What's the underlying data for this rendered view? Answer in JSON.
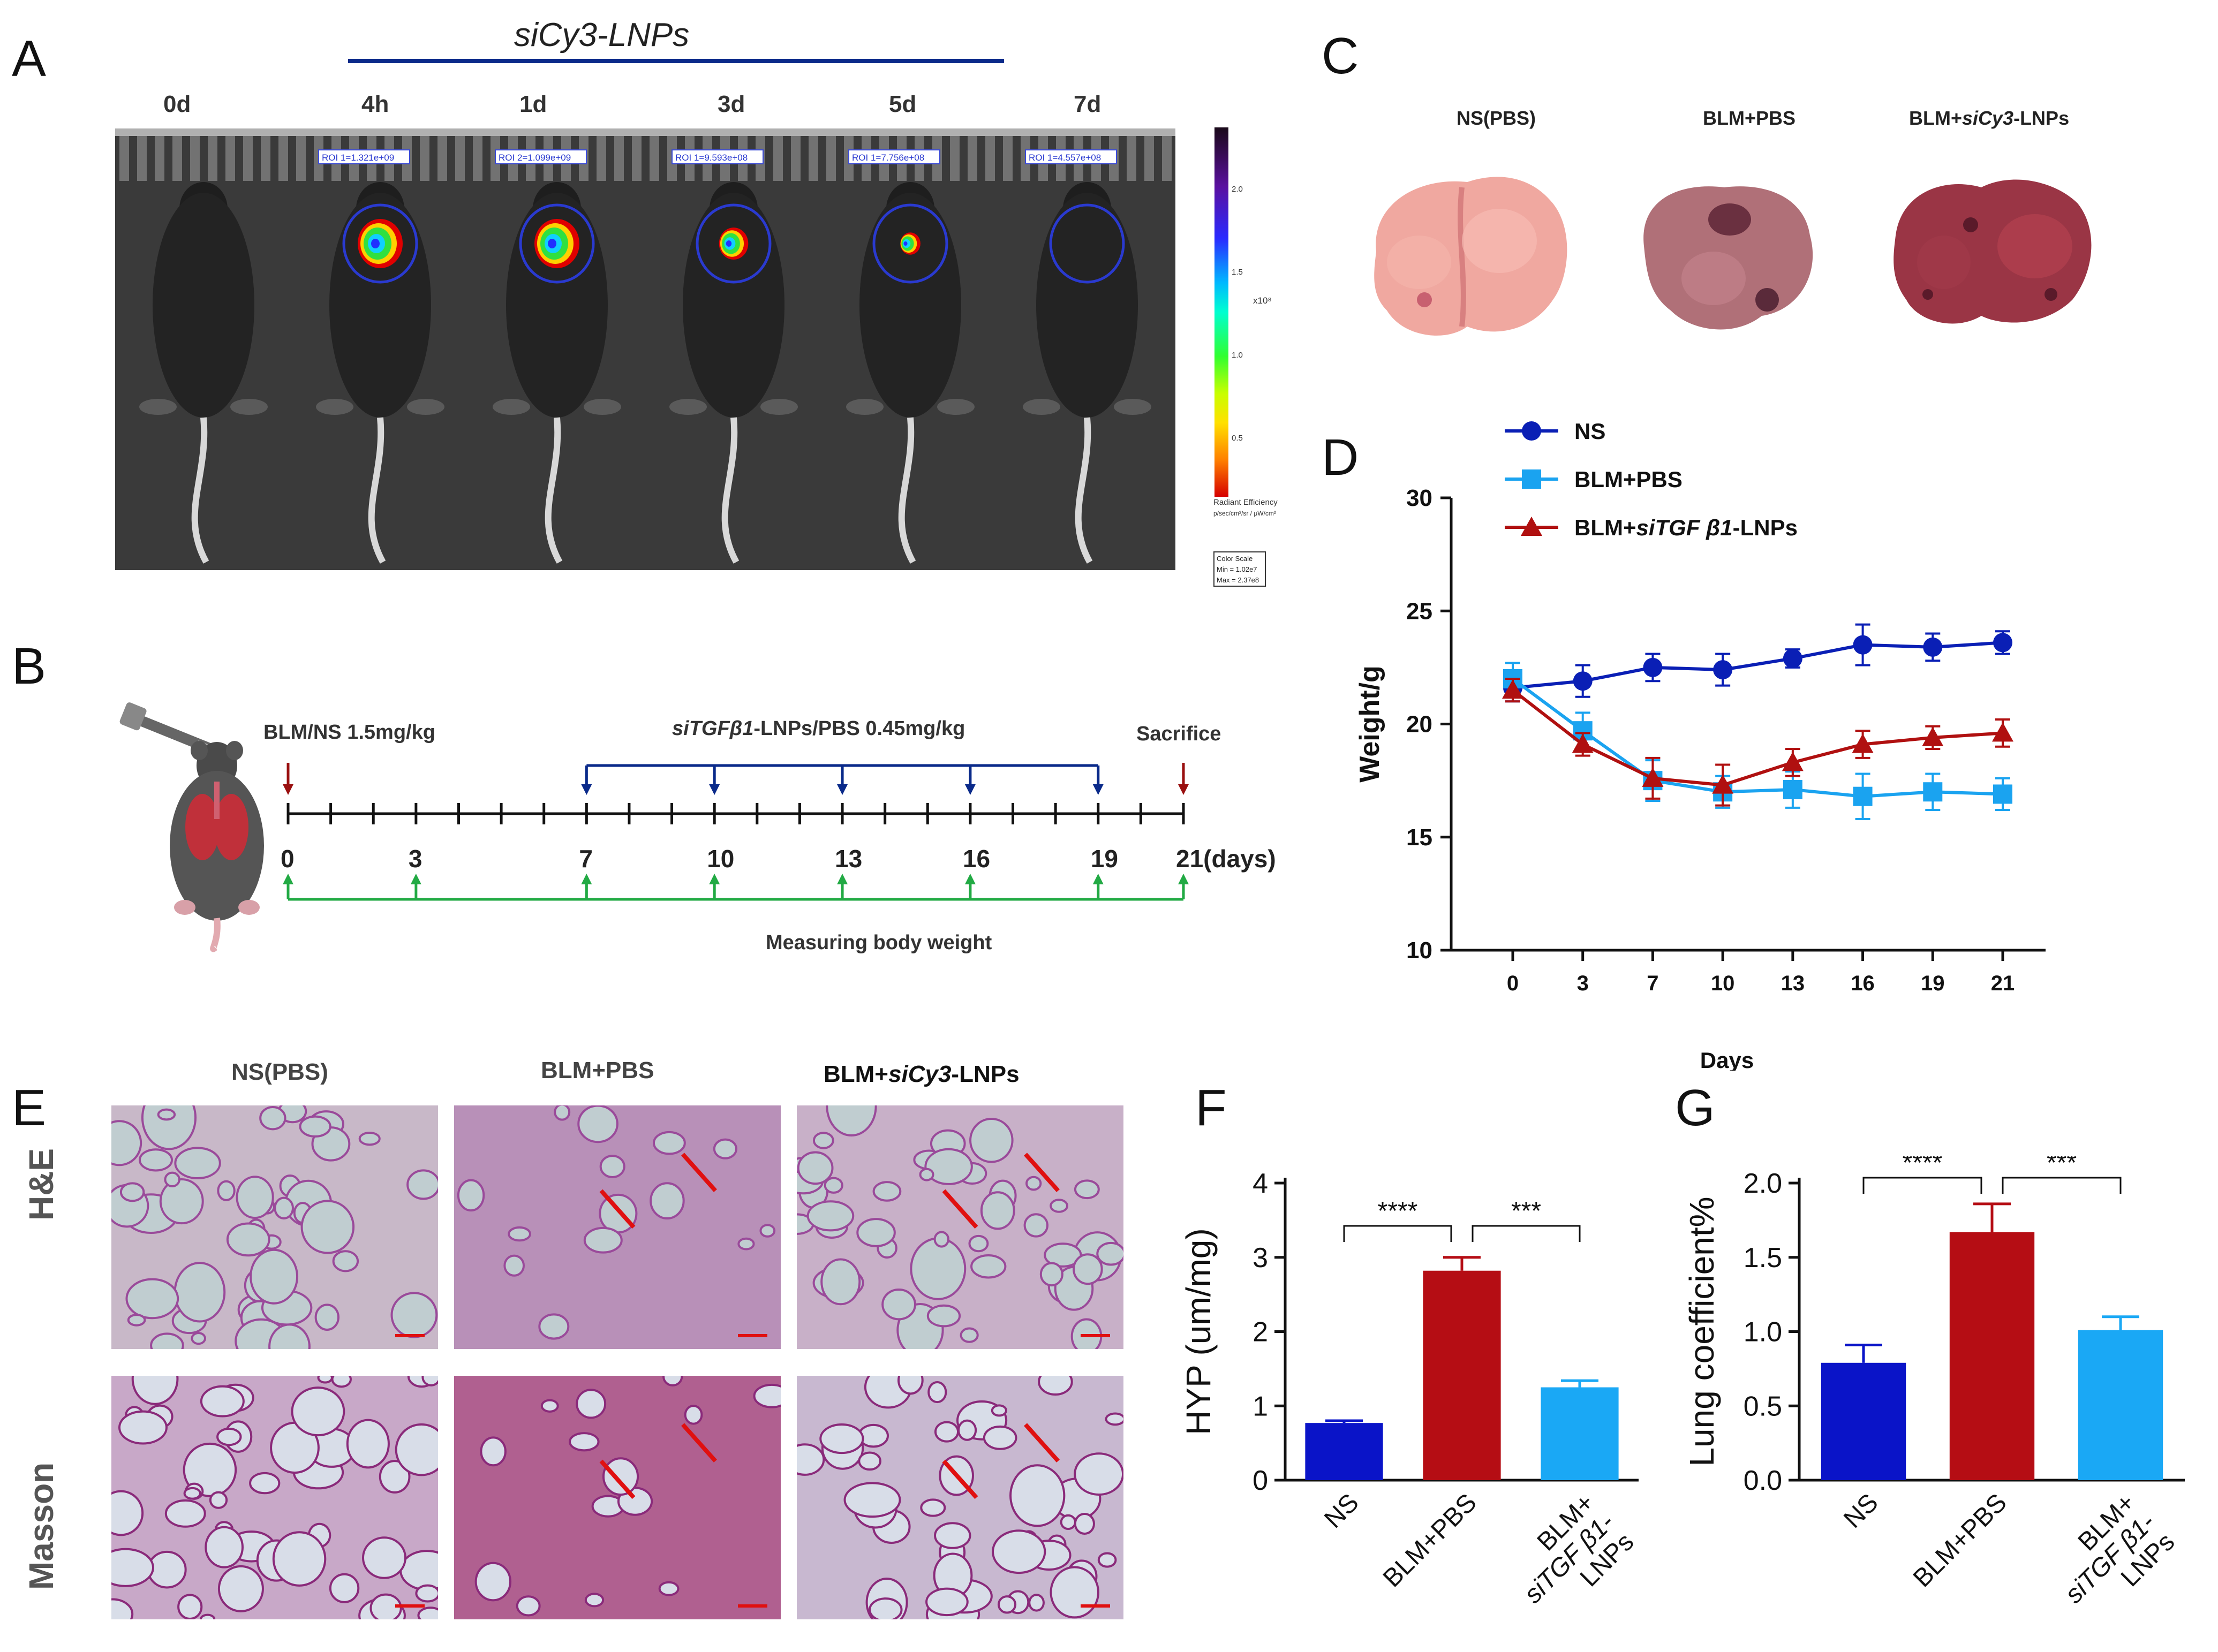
{
  "panel_labels": {
    "A": "A",
    "B": "B",
    "C": "C",
    "D": "D",
    "E": "E",
    "F": "F",
    "G": "G"
  },
  "panelA": {
    "header": "siCy3-LNPs",
    "timepoints": [
      "0d",
      "4h",
      "1d",
      "3d",
      "5d",
      "7d"
    ],
    "roi_labels": [
      "ROI 1=1.321e+09",
      "ROI 2=1.099e+09",
      "ROI 1=9.593e+08",
      "ROI 1=7.756e+08",
      "ROI 1=4.557e+08"
    ],
    "scale": {
      "ticks": [
        "2.0",
        "1.5",
        "1.0",
        "0.5"
      ],
      "multiplier": "x10⁸",
      "title": "Radiant Efficiency",
      "units": "p/sec/cm²/sr / μW/cm²",
      "color_scale_title": "Color Scale",
      "min": "Min = 1.02e7",
      "max": "Max = 2.37e8",
      "color_top": "#1a0a1a",
      "color_bottom": "#d60000"
    }
  },
  "panelB": {
    "dose_left": "BLM/NS 1.5mg/kg",
    "dose_mid_italic": "siTGFβ1",
    "dose_mid_rest": "-LNPs/PBS 0.45mg/kg",
    "sacrifice": "Sacrifice",
    "ticks": [
      "0",
      "3",
      "7",
      "10",
      "13",
      "16",
      "19",
      "21(days)"
    ],
    "measure": "Measuring body weight"
  },
  "panelC": {
    "labels": [
      "NS(PBS)",
      "BLM+PBS",
      "BLM+",
      "siCy3",
      "-LNPs"
    ]
  },
  "panelE": {
    "col_headers": [
      "NS(PBS)",
      "BLM+PBS",
      "BLM+",
      "siCy3",
      "-LNPs"
    ],
    "row_labels": [
      "H&E",
      "Masson"
    ]
  },
  "chart_data": [
    {
      "id": "D",
      "type": "line",
      "xlabel": "Days",
      "ylabel": "Weight/g",
      "categories": [
        "0",
        "3",
        "7",
        "10",
        "13",
        "16",
        "19",
        "21"
      ],
      "ylim": [
        10,
        30
      ],
      "yticks": [
        "10",
        "15",
        "20",
        "25",
        "30"
      ],
      "legend_position": "top-left",
      "series": [
        {
          "name": "NS",
          "color": "#0a1fb5",
          "marker": "circle",
          "values": [
            21.6,
            21.9,
            22.5,
            22.4,
            22.9,
            23.5,
            23.4,
            23.6
          ],
          "errors": [
            0.6,
            0.7,
            0.6,
            0.7,
            0.4,
            0.9,
            0.6,
            0.5
          ]
        },
        {
          "name": "BLM+PBS",
          "color": "#1aa3f0",
          "marker": "square",
          "values": [
            22.0,
            19.7,
            17.5,
            17.0,
            17.1,
            16.8,
            17.0,
            16.9
          ],
          "errors": [
            0.7,
            0.8,
            0.9,
            0.7,
            0.8,
            1.0,
            0.8,
            0.7
          ]
        },
        {
          "name": "BLM+siTGF β1-LNPs",
          "name_parts": [
            "BLM+",
            "siTGF β1",
            "-LNPs"
          ],
          "color": "#b01010",
          "marker": "triangle",
          "values": [
            21.5,
            19.1,
            17.6,
            17.3,
            18.3,
            19.1,
            19.4,
            19.6
          ],
          "errors": [
            0.5,
            0.5,
            0.9,
            0.9,
            0.6,
            0.6,
            0.5,
            0.6
          ]
        }
      ]
    },
    {
      "id": "F",
      "type": "bar",
      "ylabel": "HYP (um/mg)",
      "categories": [
        "NS",
        "BLM+PBS",
        "BLM+siTGF β1-LNPs"
      ],
      "category_lines": [
        [
          "NS"
        ],
        [
          "BLM+PBS"
        ],
        [
          "BLM+",
          "siTGF β1-",
          "LNPs"
        ]
      ],
      "values": [
        0.77,
        2.82,
        1.25
      ],
      "errors": [
        0.03,
        0.18,
        0.09
      ],
      "colors": [
        "#0a14c8",
        "#b50d14",
        "#1aa8f5"
      ],
      "ylim": [
        0,
        4
      ],
      "yticks": [
        "0",
        "1",
        "2",
        "3",
        "4"
      ],
      "significance": [
        {
          "pair": [
            0,
            1
          ],
          "label": "****"
        },
        {
          "pair": [
            1,
            2
          ],
          "label": "***"
        }
      ]
    },
    {
      "id": "G",
      "type": "bar",
      "ylabel": "Lung coefficient%",
      "categories": [
        "NS",
        "BLM+PBS",
        "BLM+siTGF β1-LNPs"
      ],
      "category_lines": [
        [
          "NS"
        ],
        [
          "BLM+PBS"
        ],
        [
          "BLM+",
          "siTGF β1-",
          "LNPs"
        ]
      ],
      "values": [
        0.79,
        1.67,
        1.01
      ],
      "errors": [
        0.12,
        0.19,
        0.09
      ],
      "colors": [
        "#0a14c8",
        "#b50d14",
        "#1aa8f5"
      ],
      "ylim": [
        0,
        2.0
      ],
      "yticks": [
        "0.0",
        "0.5",
        "1.0",
        "1.5",
        "2.0"
      ],
      "significance": [
        {
          "pair": [
            0,
            1
          ],
          "label": "****"
        },
        {
          "pair": [
            1,
            2
          ],
          "label": "***"
        }
      ]
    }
  ]
}
